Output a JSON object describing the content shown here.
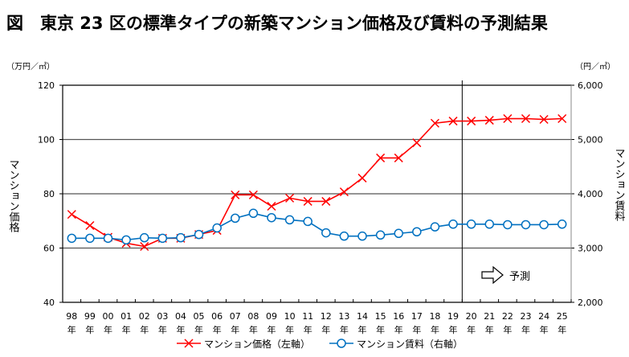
{
  "chart_data": {
    "type": "line",
    "title": "図　東京 23 区の標準タイプの新築マンション価格及び賃料の予測結果",
    "left_unit": "（万円／㎡）",
    "right_unit": "（円／㎡）",
    "ylabel_left": "マンション価格",
    "ylabel_right": "マンション賃料",
    "ylim_left": [
      40,
      120
    ],
    "yticks_left": [
      "40",
      "60",
      "80",
      "100",
      "120"
    ],
    "ylim_right": [
      2000,
      6000
    ],
    "yticks_right": [
      "2,000",
      "3,000",
      "4,000",
      "5,000",
      "6,000"
    ],
    "grid": true,
    "categories": [
      "98",
      "99",
      "00",
      "01",
      "02",
      "03",
      "04",
      "05",
      "06",
      "07",
      "08",
      "09",
      "10",
      "11",
      "12",
      "13",
      "14",
      "15",
      "16",
      "17",
      "18",
      "19",
      "20",
      "21",
      "22",
      "23",
      "24",
      "25"
    ],
    "category_suffix": "年",
    "forecast_label": "予測",
    "forecast_start": "20",
    "legend_position": "bottom",
    "series": [
      {
        "name": "マンション価格（左軸）",
        "axis": "left",
        "marker": "x",
        "color": "#ff0000",
        "values": [
          72.4,
          68.3,
          64.0,
          61.8,
          60.6,
          63.6,
          63.6,
          65.0,
          66.5,
          79.6,
          79.6,
          75.4,
          78.4,
          77.2,
          77.2,
          80.7,
          85.8,
          93.2,
          93.2,
          98.8,
          106.0,
          106.8,
          106.8,
          107.1,
          107.7,
          107.7,
          107.4,
          107.7
        ]
      },
      {
        "name": "マンション賃料（右軸）",
        "axis": "right",
        "marker": "o",
        "color": "#0070c0",
        "values": [
          3180,
          3180,
          3180,
          3150,
          3190,
          3180,
          3190,
          3250,
          3370,
          3550,
          3640,
          3560,
          3520,
          3490,
          3280,
          3220,
          3220,
          3240,
          3270,
          3300,
          3390,
          3440,
          3440,
          3440,
          3430,
          3430,
          3430,
          3440
        ]
      }
    ]
  }
}
